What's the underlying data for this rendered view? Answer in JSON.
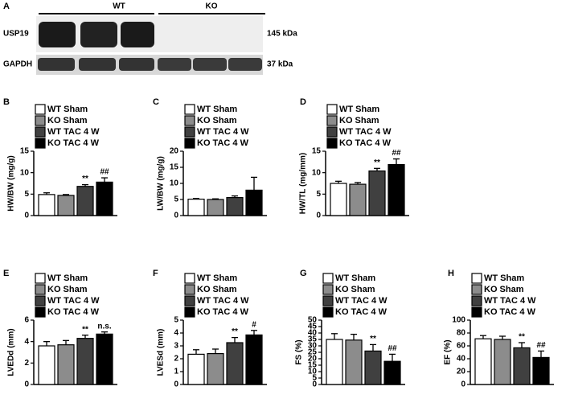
{
  "blot": {
    "panel": "A",
    "groups": [
      "WT",
      "KO"
    ],
    "proteins": [
      "USP19",
      "GAPDH"
    ],
    "sizes": [
      "145 kDa",
      "37 kDa"
    ]
  },
  "chart_data": [
    {
      "type": "bar",
      "panel": "B",
      "ylabel": "HW/BW (mg/g)",
      "categories": [
        "WT Sham",
        "KO Sham",
        "WT TAC 4 W",
        "KO TAC 4 W"
      ],
      "colors": [
        "#ffffff",
        "#8c8c8c",
        "#404040",
        "#000000"
      ],
      "values": [
        4.9,
        4.7,
        6.8,
        7.8
      ],
      "errors": [
        0.4,
        0.2,
        0.4,
        1.0
      ],
      "annotations": [
        null,
        null,
        "**",
        "##"
      ],
      "ylim": [
        0,
        15
      ],
      "yticks": [
        0,
        5,
        10,
        15
      ]
    },
    {
      "type": "bar",
      "panel": "C",
      "ylabel": "LW/BW (mg/g)",
      "categories": [
        "WT Sham",
        "KO Sham",
        "WT TAC 4 W",
        "KO TAC 4 W"
      ],
      "colors": [
        "#ffffff",
        "#8c8c8c",
        "#404040",
        "#000000"
      ],
      "values": [
        5.1,
        5.0,
        5.6,
        7.9
      ],
      "errors": [
        0.2,
        0.2,
        0.5,
        4.0
      ],
      "annotations": [
        null,
        null,
        null,
        null
      ],
      "ylim": [
        0,
        20
      ],
      "yticks": [
        0,
        5,
        10,
        15,
        20
      ]
    },
    {
      "type": "bar",
      "panel": "D",
      "ylabel": "HW/TL (mg/mm)",
      "categories": [
        "WT Sham",
        "KO Sham",
        "WT TAC 4 W",
        "KO TAC 4 W"
      ],
      "colors": [
        "#ffffff",
        "#8c8c8c",
        "#404040",
        "#000000"
      ],
      "values": [
        7.5,
        7.3,
        10.4,
        11.9
      ],
      "errors": [
        0.5,
        0.4,
        0.6,
        1.3
      ],
      "annotations": [
        null,
        null,
        "**",
        "##"
      ],
      "ylim": [
        0,
        15
      ],
      "yticks": [
        0,
        5,
        10,
        15
      ]
    },
    {
      "type": "bar",
      "panel": "E",
      "ylabel": "LVEDd (mm)",
      "categories": [
        "WT Sham",
        "KO Sham",
        "WT TAC 4 W",
        "KO TAC 4 W"
      ],
      "colors": [
        "#ffffff",
        "#8c8c8c",
        "#404040",
        "#000000"
      ],
      "values": [
        3.6,
        3.7,
        4.3,
        4.7
      ],
      "errors": [
        0.4,
        0.4,
        0.3,
        0.2
      ],
      "annotations": [
        null,
        null,
        "**",
        "n.s."
      ],
      "ylim": [
        0,
        6
      ],
      "yticks": [
        0,
        2,
        4,
        6
      ]
    },
    {
      "type": "bar",
      "panel": "F",
      "ylabel": "LVESd (mm)",
      "categories": [
        "WT Sham",
        "KO Sham",
        "WT TAC 4 W",
        "KO TAC 4 W"
      ],
      "colors": [
        "#ffffff",
        "#8c8c8c",
        "#404040",
        "#000000"
      ],
      "values": [
        2.35,
        2.4,
        3.25,
        3.85
      ],
      "errors": [
        0.35,
        0.35,
        0.4,
        0.35
      ],
      "annotations": [
        null,
        null,
        "**",
        "#"
      ],
      "ylim": [
        0,
        5
      ],
      "yticks": [
        0,
        1,
        2,
        3,
        4,
        5
      ]
    },
    {
      "type": "bar",
      "panel": "G",
      "ylabel": "FS (%)",
      "categories": [
        "WT Sham",
        "KO Sham",
        "WT TAC 4 W",
        "KO TAC 4 W"
      ],
      "colors": [
        "#ffffff",
        "#8c8c8c",
        "#404040",
        "#000000"
      ],
      "values": [
        35,
        34.5,
        26,
        18
      ],
      "errors": [
        4.5,
        4.5,
        5,
        5.5
      ],
      "annotations": [
        null,
        null,
        "**",
        "##"
      ],
      "ylim": [
        0,
        50
      ],
      "yticks": [
        0,
        5,
        10,
        15,
        20,
        25,
        30,
        35,
        40,
        45,
        50
      ]
    },
    {
      "type": "bar",
      "panel": "H",
      "ylabel": "EF (%)",
      "categories": [
        "WT Sham",
        "KO Sham",
        "WT TAC 4 W",
        "KO TAC 4 W"
      ],
      "colors": [
        "#ffffff",
        "#8c8c8c",
        "#404040",
        "#000000"
      ],
      "values": [
        71,
        70,
        57,
        42
      ],
      "errors": [
        5,
        5,
        8,
        10
      ],
      "annotations": [
        null,
        null,
        "**",
        "##"
      ],
      "ylim": [
        0,
        100
      ],
      "yticks": [
        0,
        20,
        40,
        60,
        80,
        100
      ]
    }
  ]
}
